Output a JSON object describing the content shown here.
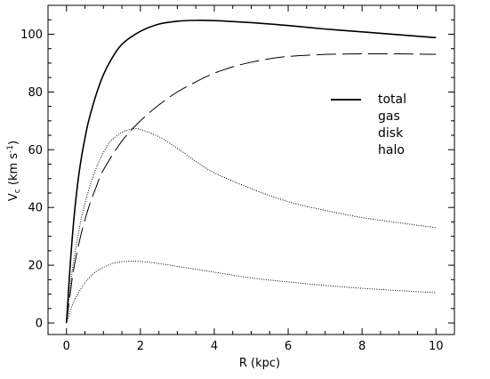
{
  "chart_data": {
    "type": "line",
    "xlabel": "R (kpc)",
    "ylabel": {
      "main": "V",
      "sub": "c",
      "unit_pre": " (km s",
      "unit_sup": "-1",
      "unit_post": ")"
    },
    "xlim": [
      -0.5,
      10.5
    ],
    "ylim": [
      -4,
      110
    ],
    "x_ticks": [
      0,
      2,
      4,
      6,
      8,
      10
    ],
    "y_ticks": [
      0,
      20,
      40,
      60,
      80,
      100
    ],
    "grid": false,
    "legend_position": "upper-right",
    "series": [
      {
        "name": "total",
        "line_style": "solid",
        "points": [
          [
            0,
            0
          ],
          [
            0.1,
            20
          ],
          [
            0.2,
            36
          ],
          [
            0.3,
            48
          ],
          [
            0.4,
            57
          ],
          [
            0.5,
            64
          ],
          [
            0.6,
            70
          ],
          [
            0.8,
            79
          ],
          [
            1.0,
            86
          ],
          [
            1.2,
            91
          ],
          [
            1.5,
            96.5
          ],
          [
            2.0,
            101
          ],
          [
            2.5,
            103.5
          ],
          [
            3.0,
            104.5
          ],
          [
            3.5,
            104.8
          ],
          [
            4.0,
            104.7
          ],
          [
            5.0,
            104
          ],
          [
            6.0,
            103
          ],
          [
            7.0,
            101.8
          ],
          [
            8.0,
            100.8
          ],
          [
            9.0,
            99.8
          ],
          [
            10.0,
            98.8
          ]
        ]
      },
      {
        "name": "gas",
        "line_style": "dashed",
        "points": [
          [
            0,
            0
          ],
          [
            0.1,
            10
          ],
          [
            0.2,
            19
          ],
          [
            0.4,
            31
          ],
          [
            0.6,
            40
          ],
          [
            0.8,
            47
          ],
          [
            1.0,
            53
          ],
          [
            1.5,
            63
          ],
          [
            2.0,
            70
          ],
          [
            2.5,
            75.5
          ],
          [
            3.0,
            80
          ],
          [
            3.5,
            83.5
          ],
          [
            4.0,
            86.5
          ],
          [
            4.5,
            88.7
          ],
          [
            5.0,
            90.3
          ],
          [
            5.5,
            91.5
          ],
          [
            6.0,
            92.3
          ],
          [
            7.0,
            93
          ],
          [
            8.0,
            93.2
          ],
          [
            9.0,
            93.2
          ],
          [
            10.0,
            93
          ]
        ]
      },
      {
        "name": "disk",
        "line_style": "dotted",
        "points": [
          [
            0,
            0
          ],
          [
            0.1,
            12
          ],
          [
            0.2,
            22
          ],
          [
            0.4,
            36
          ],
          [
            0.6,
            46
          ],
          [
            0.8,
            53.5
          ],
          [
            1.0,
            59
          ],
          [
            1.2,
            63
          ],
          [
            1.5,
            66
          ],
          [
            1.8,
            67.2
          ],
          [
            2.0,
            67
          ],
          [
            2.5,
            64.5
          ],
          [
            3.0,
            60.5
          ],
          [
            3.5,
            56
          ],
          [
            4.0,
            52
          ],
          [
            5.0,
            46.5
          ],
          [
            6.0,
            42
          ],
          [
            7.0,
            39
          ],
          [
            8.0,
            36.5
          ],
          [
            9.0,
            34.7
          ],
          [
            10.0,
            33
          ]
        ]
      },
      {
        "name": "halo",
        "line_style": "dotted",
        "points": [
          [
            0,
            0
          ],
          [
            0.1,
            4
          ],
          [
            0.2,
            7.5
          ],
          [
            0.4,
            12
          ],
          [
            0.6,
            15.5
          ],
          [
            0.8,
            17.8
          ],
          [
            1.0,
            19.3
          ],
          [
            1.3,
            20.8
          ],
          [
            1.6,
            21.3
          ],
          [
            2.0,
            21.3
          ],
          [
            2.5,
            20.6
          ],
          [
            3.0,
            19.6
          ],
          [
            4.0,
            17.6
          ],
          [
            5.0,
            15.6
          ],
          [
            6.0,
            14.2
          ],
          [
            7.0,
            13
          ],
          [
            8.0,
            12
          ],
          [
            9.0,
            11.2
          ],
          [
            10.0,
            10.5
          ]
        ]
      }
    ]
  }
}
